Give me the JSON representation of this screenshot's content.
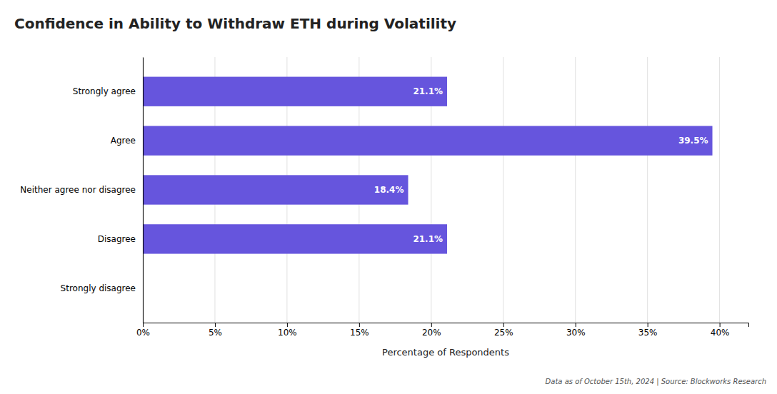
{
  "chart_data": {
    "type": "bar",
    "orientation": "horizontal",
    "title": "Confidence in Ability to Withdraw ETH during Volatility",
    "categories": [
      "Strongly disagree",
      "Disagree",
      "Neither agree nor disagree",
      "Agree",
      "Strongly agree"
    ],
    "values": [
      0.0,
      21.1,
      18.4,
      39.5,
      21.1
    ],
    "value_labels": [
      null,
      "21.1%",
      "18.4%",
      "39.5%",
      "21.1%"
    ],
    "data_labels": true,
    "color": "#6655dd",
    "xlabel": "Percentage of Respondents",
    "xlim": [
      0,
      42
    ],
    "xticks": [
      {
        "value": 0,
        "label": "0%"
      },
      {
        "value": 5,
        "label": "5%"
      },
      {
        "value": 10,
        "label": "10%"
      },
      {
        "value": 15,
        "label": "15%"
      },
      {
        "value": 20,
        "label": "20%"
      },
      {
        "value": 25,
        "label": "25%"
      },
      {
        "value": 30,
        "label": "30%"
      },
      {
        "value": 35,
        "label": "35%"
      },
      {
        "value": 40,
        "label": "40%"
      }
    ],
    "grid": true,
    "annotations": [
      "Data as of October 15th, 2024 | Source: Blockworks Research"
    ]
  }
}
